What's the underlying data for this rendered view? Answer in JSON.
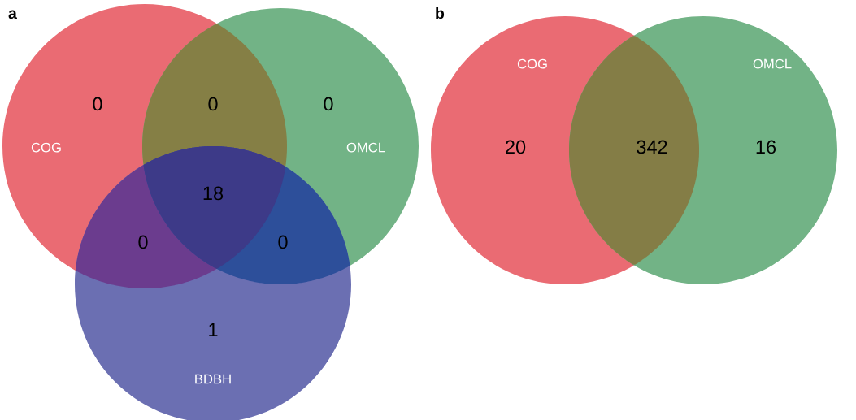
{
  "chart_data": [
    {
      "type": "other",
      "title": "a",
      "categories": [
        null,
        null,
        null,
        null,
        null,
        null,
        null
      ],
      "values": [
        0,
        0,
        0,
        18,
        0,
        0,
        1
      ],
      "colors": [
        "#ea6b73",
        "#857f45",
        "#72b386",
        "#3d3a88",
        "#6b3c8e",
        "#2d4f9a",
        "#6b6fb2"
      ],
      "annotations": [
        "COG",
        "OMCL",
        "BDBH"
      ],
      "data_labels": true
    },
    {
      "type": "other",
      "title": "b",
      "categories": [
        null,
        null,
        null
      ],
      "values": [
        20,
        342,
        16
      ],
      "colors": [
        "#ea6b73",
        "#847d46",
        "#72b386"
      ],
      "annotations": [
        "COG",
        "OMCL"
      ],
      "data_labels": true
    }
  ]
}
